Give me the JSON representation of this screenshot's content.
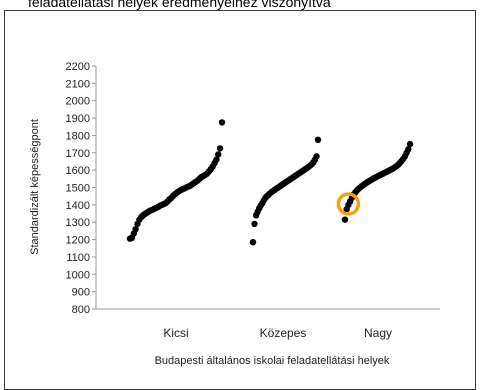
{
  "header": {
    "title": "feladatellátási helyek eredményeihez viszonyítva"
  },
  "chart_data": {
    "type": "scatter",
    "title": "",
    "xlabel": "Budapesti általános iskolai feladatellátási helyek",
    "ylabel": "Standardizált képességpont",
    "ylim": [
      800,
      2200
    ],
    "yticks": [
      "800",
      "900",
      "1000",
      "1100",
      "1200",
      "1300",
      "1400",
      "1500",
      "1600",
      "1700",
      "1800",
      "1900",
      "2000",
      "2100",
      "2200"
    ],
    "categories": [
      "Kicsi",
      "Közepes",
      "Nagy"
    ],
    "grid": false,
    "marker_color": "#000000",
    "highlight_color": "#f5a10f",
    "series": [
      {
        "category": "Kicsi",
        "values": [
          1205,
          1210,
          1235,
          1260,
          1290,
          1315,
          1330,
          1340,
          1348,
          1355,
          1362,
          1368,
          1372,
          1378,
          1383,
          1388,
          1395,
          1400,
          1405,
          1410,
          1420,
          1432,
          1440,
          1452,
          1462,
          1470,
          1478,
          1485,
          1490,
          1495,
          1500,
          1505,
          1510,
          1518,
          1525,
          1533,
          1540,
          1550,
          1560,
          1565,
          1572,
          1580,
          1592,
          1605,
          1620,
          1640,
          1660,
          1690,
          1725,
          1875
        ]
      },
      {
        "category": "Közepes",
        "values": [
          1185,
          1290,
          1340,
          1360,
          1380,
          1395,
          1410,
          1425,
          1440,
          1450,
          1458,
          1466,
          1474,
          1480,
          1487,
          1493,
          1499,
          1505,
          1511,
          1517,
          1523,
          1529,
          1535,
          1541,
          1547,
          1553,
          1559,
          1565,
          1571,
          1577,
          1583,
          1589,
          1595,
          1601,
          1607,
          1613,
          1620,
          1627,
          1635,
          1645,
          1660,
          1680,
          1775
        ]
      },
      {
        "category": "Nagy",
        "values": [
          1315,
          1375,
          1400,
          1420,
          1440,
          1460,
          1472,
          1484,
          1493,
          1501,
          1509,
          1516,
          1523,
          1530,
          1536,
          1542,
          1548,
          1554,
          1559,
          1564,
          1569,
          1574,
          1579,
          1584,
          1589,
          1594,
          1599,
          1604,
          1609,
          1615,
          1622,
          1630,
          1640,
          1652,
          1665,
          1680,
          1700,
          1720,
          1750
        ]
      }
    ],
    "highlight": {
      "category": "Nagy",
      "value": 1405
    }
  }
}
